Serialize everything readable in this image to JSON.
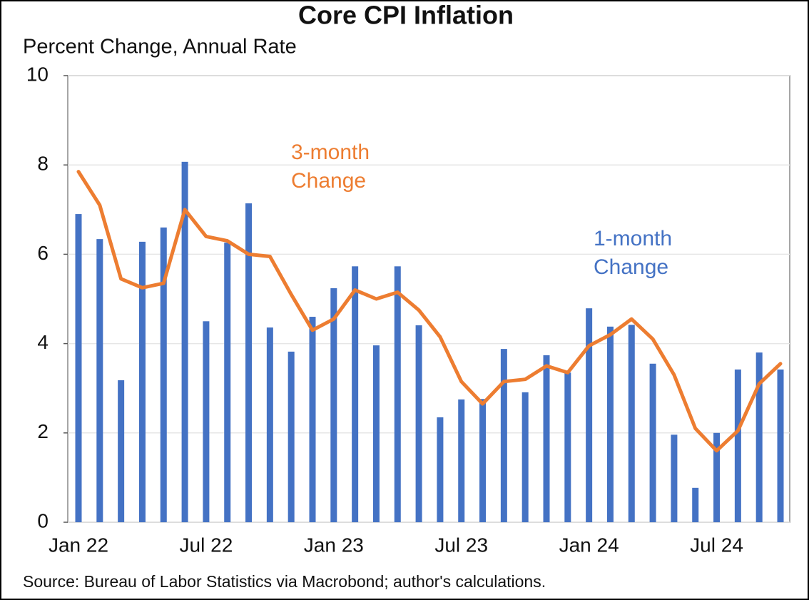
{
  "chart_data": {
    "type": "bar",
    "title": "Core CPI Inflation",
    "subtitle": "Percent Change, Annual Rate",
    "source": "Source: Bureau of Labor Statistics via Macrobond; author's calculations.",
    "categories": [
      "Jan 22",
      null,
      null,
      null,
      null,
      null,
      "Jul 22",
      null,
      null,
      null,
      null,
      null,
      "Jan 23",
      null,
      null,
      null,
      null,
      null,
      "Jul 23",
      null,
      null,
      null,
      null,
      null,
      "Jan 24",
      null,
      null,
      null,
      null,
      null,
      "Jul 24",
      null,
      null,
      null
    ],
    "series": [
      {
        "name": "1-month Change",
        "type": "bar",
        "color": "#4472c4",
        "values": [
          6.9,
          6.34,
          3.18,
          6.28,
          6.6,
          8.07,
          4.5,
          6.26,
          7.14,
          4.36,
          3.82,
          4.6,
          5.24,
          5.73,
          3.96,
          5.73,
          4.41,
          2.35,
          2.75,
          2.76,
          3.88,
          2.91,
          3.74,
          3.35,
          4.79,
          4.38,
          4.42,
          3.55,
          1.96,
          0.77,
          2.0,
          3.42,
          3.8,
          3.42
        ]
      },
      {
        "name": "3-month Change",
        "type": "line",
        "color": "#ed7d31",
        "values": [
          7.85,
          7.1,
          5.45,
          5.25,
          5.35,
          7.0,
          6.4,
          6.3,
          6.0,
          5.95,
          5.1,
          4.3,
          4.55,
          5.2,
          5.0,
          5.15,
          4.75,
          4.15,
          3.15,
          2.65,
          3.15,
          3.2,
          3.5,
          3.35,
          3.95,
          4.2,
          4.55,
          4.1,
          3.3,
          2.1,
          1.6,
          2.05,
          3.1,
          3.55
        ]
      }
    ],
    "ylim": [
      0,
      10
    ],
    "yticks": [
      0,
      2,
      4,
      6,
      8,
      10
    ],
    "grid": true
  }
}
